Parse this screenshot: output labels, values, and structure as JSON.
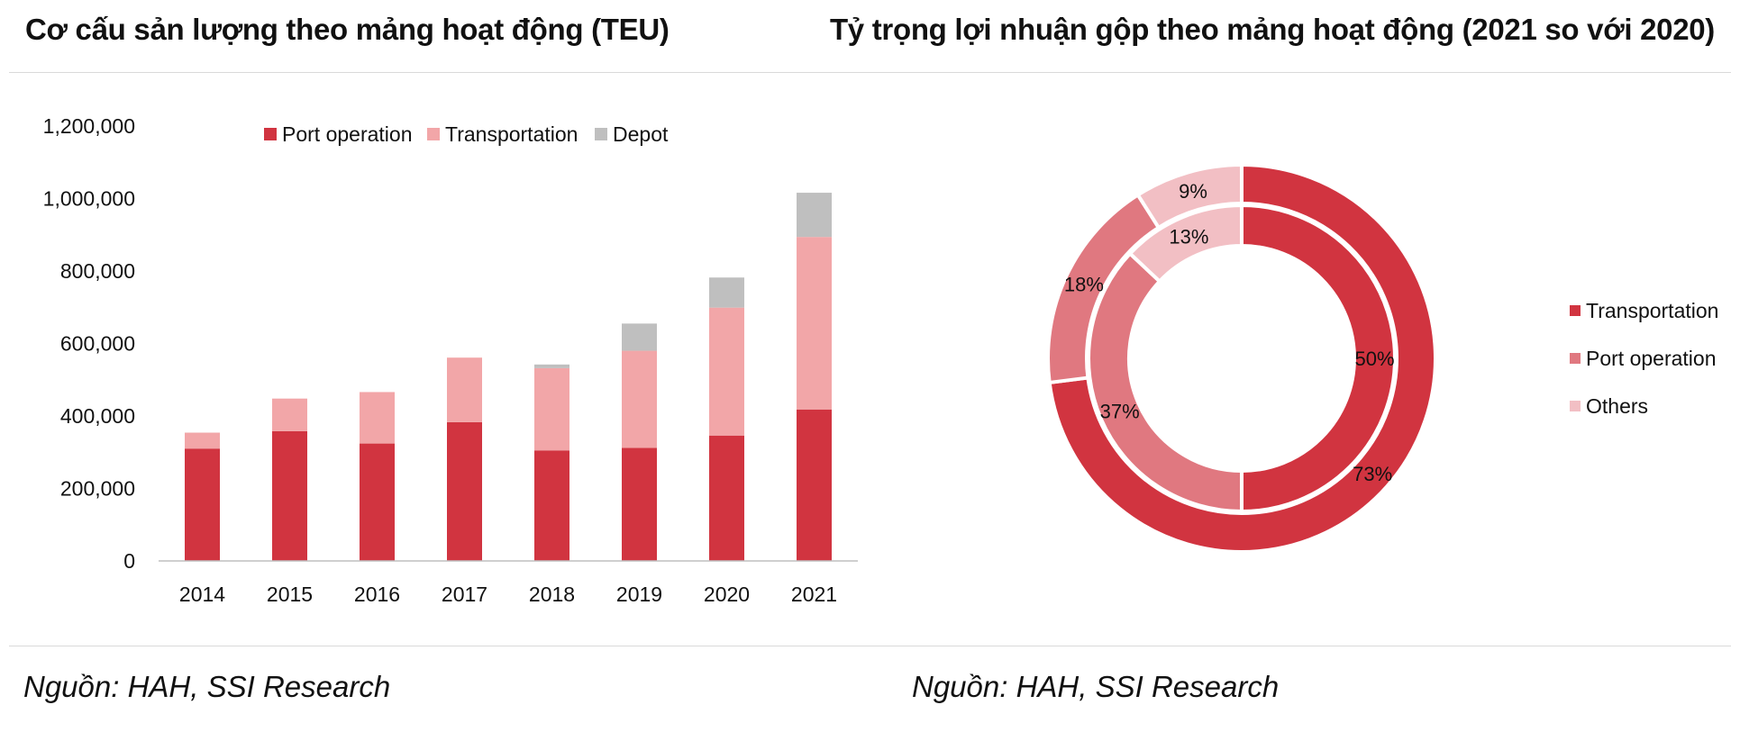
{
  "left_panel": {
    "title": "Cơ cấu sản lượng theo mảng hoạt động (TEU)",
    "source": "Nguồn: HAH, SSI Research"
  },
  "right_panel": {
    "title": "Tỷ trọng lợi nhuận gộp theo mảng hoạt động (2021 so với 2020)",
    "source": "Nguồn: HAH, SSI Research"
  },
  "chart_data": [
    {
      "type": "bar",
      "stacked": true,
      "title": "Cơ cấu sản lượng theo mảng hoạt động (TEU)",
      "xlabel": "",
      "ylabel": "",
      "categories": [
        "2014",
        "2015",
        "2016",
        "2017",
        "2018",
        "2019",
        "2020",
        "2021"
      ],
      "series": [
        {
          "name": "Port operation",
          "color": "#d13440",
          "values": [
            310000,
            358000,
            324000,
            383000,
            305000,
            312000,
            346000,
            418000
          ]
        },
        {
          "name": "Transportation",
          "color": "#f2a6a8",
          "values": [
            44000,
            90000,
            142000,
            178000,
            227000,
            268000,
            353000,
            476000
          ]
        },
        {
          "name": "Depot",
          "color": "#bfbfbf",
          "values": [
            0,
            0,
            0,
            0,
            10000,
            75000,
            83000,
            122000
          ]
        }
      ],
      "ylim": [
        0,
        1200000
      ],
      "yticks": [
        "0",
        "200,000",
        "400,000",
        "600,000",
        "800,000",
        "1,000,000",
        "1,200,000"
      ],
      "ytick_values": [
        0,
        200000,
        400000,
        600000,
        800000,
        1000000,
        1200000
      ],
      "legend_position": "top",
      "grid": false
    },
    {
      "type": "pie",
      "variant": "donut",
      "title": "Tỷ trọng lợi nhuận gộp theo mảng hoạt động (2021 so với 2020)",
      "categories": [
        "Transportation",
        "Port operation",
        "Others"
      ],
      "colors": [
        "#d13440",
        "#e07880",
        "#f2bfc4"
      ],
      "rings": [
        {
          "ring": "outer",
          "values": [
            73,
            18,
            9
          ],
          "labels": [
            "73%",
            "18%",
            "9%"
          ]
        },
        {
          "ring": "inner",
          "values": [
            50,
            37,
            13
          ],
          "labels": [
            "50%",
            "37%",
            "13%"
          ]
        }
      ],
      "legend_position": "right"
    }
  ]
}
